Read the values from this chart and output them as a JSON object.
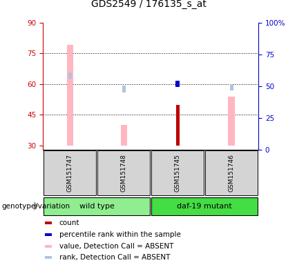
{
  "title": "GDS2549 / 176135_s_at",
  "samples": [
    "GSM151747",
    "GSM151748",
    "GSM151745",
    "GSM151746"
  ],
  "ylim_left": [
    28,
    90
  ],
  "ylim_right": [
    0,
    100
  ],
  "yticks_left": [
    30,
    45,
    60,
    75,
    90
  ],
  "yticks_right": [
    0,
    25,
    50,
    75,
    100
  ],
  "ytick_labels_right": [
    "0",
    "25",
    "50",
    "75",
    "100%"
  ],
  "left_axis_color": "#cc0000",
  "right_axis_color": "#0000cc",
  "value_absent_color": "#ffb6c1",
  "rank_absent_color": "#b0c4de",
  "count_color": "#bb0000",
  "rank_color": "#0000cc",
  "bars": [
    {
      "sample_idx": 0,
      "value_absent": 79,
      "rank_absent_pct": 57,
      "count": null,
      "rank_pct": null
    },
    {
      "sample_idx": 1,
      "value_absent": 40,
      "rank_absent_pct": 46.5,
      "count": null,
      "rank_pct": null
    },
    {
      "sample_idx": 2,
      "value_absent": null,
      "rank_absent_pct": null,
      "count": 50,
      "rank_pct": 50.5
    },
    {
      "sample_idx": 3,
      "value_absent": 54,
      "rank_absent_pct": 48,
      "count": null,
      "rank_pct": null
    }
  ],
  "count_base": 30,
  "bar_width": 0.12,
  "count_bar_width": 0.06,
  "groups": [
    {
      "name": "wild type",
      "color": "#90ee90",
      "indices": [
        0,
        1
      ]
    },
    {
      "name": "daf-19 mutant",
      "color": "#44dd44",
      "indices": [
        2,
        3
      ]
    }
  ],
  "legend_items": [
    {
      "color": "#bb0000",
      "label": "count",
      "shape": "square"
    },
    {
      "color": "#0000cc",
      "label": "percentile rank within the sample",
      "shape": "square"
    },
    {
      "color": "#ffb6c1",
      "label": "value, Detection Call = ABSENT",
      "shape": "square"
    },
    {
      "color": "#b0c4de",
      "label": "rank, Detection Call = ABSENT",
      "shape": "square"
    }
  ],
  "grid_yticks": [
    45,
    60,
    75
  ],
  "grid_color": "#000000",
  "group_label": "genotype/variation"
}
